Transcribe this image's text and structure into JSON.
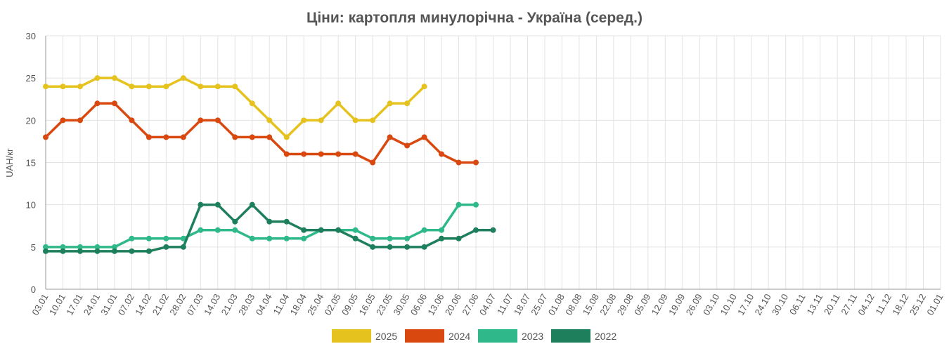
{
  "chart_data": {
    "type": "line",
    "title": "Ціни: картопля минулорічна - Україна (серед.)",
    "y_label": "UAH/кг",
    "categories": [
      "03.01",
      "10.01",
      "17.01",
      "24.01",
      "31.01",
      "07.02",
      "14.02",
      "21.02",
      "28.02",
      "07.03",
      "14.03",
      "21.03",
      "28.03",
      "04.04",
      "11.04",
      "18.04",
      "25.04",
      "02.05",
      "09.05",
      "16.05",
      "23.05",
      "30.05",
      "06.06",
      "13.06",
      "20.06",
      "27.06",
      "04.07",
      "11.07",
      "18.07",
      "25.07",
      "01.08",
      "08.08",
      "15.08",
      "22.08",
      "29.08",
      "05.09",
      "12.09",
      "19.09",
      "26.09",
      "03.10",
      "10.10",
      "17.10",
      "24.10",
      "30.10",
      "06.11",
      "13.11",
      "20.11",
      "27.11",
      "04.12",
      "11.12",
      "18.12",
      "25.12",
      "01.01"
    ],
    "series": [
      {
        "name": "2025",
        "color": "#e5c21d",
        "values": [
          24,
          24,
          24,
          25,
          25,
          24,
          24,
          24,
          25,
          24,
          24,
          24,
          22,
          20,
          18,
          20,
          20,
          22,
          20,
          20,
          22,
          22,
          24,
          null,
          null,
          null,
          null,
          null,
          null,
          null,
          null,
          null,
          null,
          null,
          null,
          null,
          null,
          null,
          null,
          null,
          null,
          null,
          null,
          null,
          null,
          null,
          null,
          null,
          null,
          null,
          null,
          null,
          null
        ]
      },
      {
        "name": "2024",
        "color": "#d9480f",
        "values": [
          18,
          20,
          20,
          22,
          22,
          20,
          18,
          18,
          18,
          20,
          20,
          18,
          18,
          18,
          16,
          16,
          16,
          16,
          16,
          15,
          18,
          17,
          18,
          16,
          15,
          15,
          null,
          null,
          null,
          null,
          null,
          null,
          null,
          null,
          null,
          null,
          null,
          null,
          null,
          null,
          null,
          null,
          null,
          null,
          null,
          null,
          null,
          null,
          null,
          null,
          null,
          null,
          null
        ]
      },
      {
        "name": "2023",
        "color": "#2fb98a",
        "values": [
          5,
          5,
          5,
          5,
          5,
          6,
          6,
          6,
          6,
          7,
          7,
          7,
          6,
          6,
          6,
          6,
          7,
          7,
          7,
          6,
          6,
          6,
          7,
          7,
          10,
          10,
          null,
          null,
          null,
          null,
          null,
          null,
          null,
          null,
          null,
          null,
          null,
          null,
          null,
          null,
          null,
          null,
          null,
          null,
          null,
          null,
          null,
          null,
          null,
          null,
          null,
          null,
          null
        ]
      },
      {
        "name": "2022",
        "color": "#1e7f5c",
        "values": [
          4.5,
          4.5,
          4.5,
          4.5,
          4.5,
          4.5,
          4.5,
          5,
          5,
          10,
          10,
          8,
          10,
          8,
          8,
          7,
          7,
          7,
          6,
          5,
          5,
          5,
          5,
          6,
          6,
          7,
          7,
          null,
          null,
          null,
          null,
          null,
          null,
          null,
          null,
          null,
          null,
          null,
          null,
          null,
          null,
          null,
          null,
          null,
          null,
          null,
          null,
          null,
          null,
          null,
          null,
          null,
          null
        ]
      }
    ],
    "ylim": [
      0,
      30
    ],
    "yticks": [
      0,
      5,
      10,
      15,
      20,
      25,
      30
    ],
    "grid": true,
    "legend": "bottom"
  }
}
